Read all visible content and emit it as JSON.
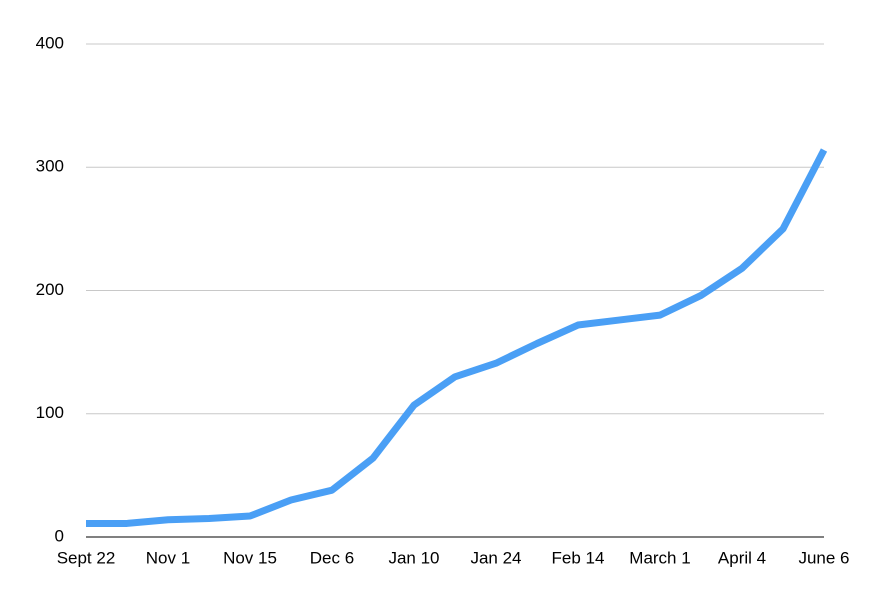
{
  "chart_data": {
    "type": "line",
    "categories": [
      "Sept 22",
      null,
      "Nov 1",
      null,
      "Nov 15",
      null,
      "Dec 6",
      null,
      "Jan 10",
      null,
      "Jan 24",
      null,
      "Feb 14",
      null,
      "March 1",
      null,
      "April 4",
      null,
      "June 6"
    ],
    "series": [
      {
        "color": "#4a9ff5",
        "values": [
          11,
          11,
          14,
          15,
          17,
          30,
          38,
          64,
          107,
          130,
          141,
          157,
          172,
          176,
          180,
          196,
          218,
          250,
          314
        ]
      }
    ],
    "ylim": [
      0,
      400
    ],
    "yticks": [
      0,
      100,
      200,
      300,
      400
    ],
    "grid": true
  }
}
